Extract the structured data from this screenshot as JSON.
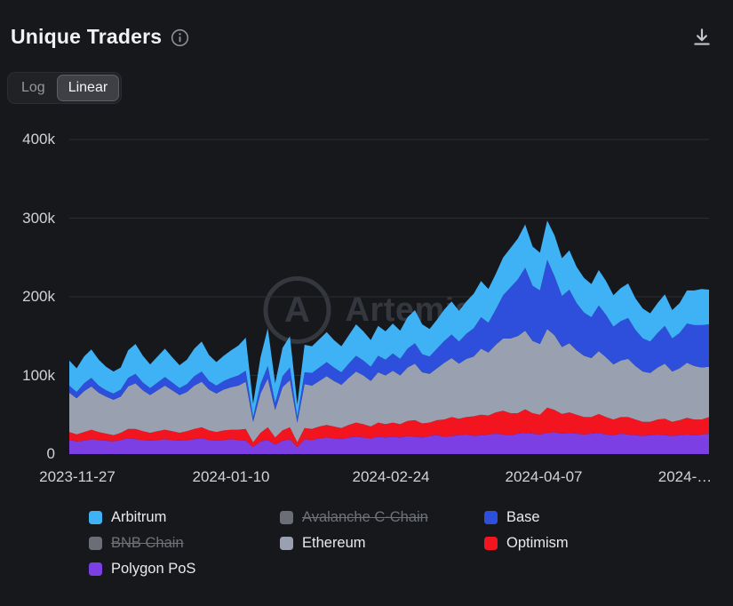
{
  "header": {
    "title": "Unique Traders"
  },
  "scale_toggle": {
    "options": [
      {
        "label": "Log",
        "active": false
      },
      {
        "label": "Linear",
        "active": true
      }
    ]
  },
  "watermark": {
    "logo_letter": "A",
    "text": "Artemis"
  },
  "chart_data": {
    "type": "area",
    "stacked": true,
    "title": "Unique Traders",
    "start_date": "2023-11-27",
    "interval_days": 2,
    "values_unit": "thousands of unique traders",
    "ylim": [
      0,
      400
    ],
    "grid": "horizontal",
    "legend_position": "bottom",
    "y_ticks": [
      {
        "label": "0",
        "value": 0
      },
      {
        "label": "100k",
        "value": 100
      },
      {
        "label": "200k",
        "value": 200
      },
      {
        "label": "300k",
        "value": 300
      },
      {
        "label": "400k",
        "value": 400
      }
    ],
    "x_ticks": [
      {
        "label": "2023-11-27",
        "f": 0.012
      },
      {
        "label": "2024-01-10",
        "f": 0.253
      },
      {
        "label": "2024-02-24",
        "f": 0.503
      },
      {
        "label": "2024-04-07",
        "f": 0.742
      },
      {
        "label": "2024-…",
        "f": 0.962
      }
    ],
    "series": [
      {
        "name": "Polygon PoS",
        "color": "#7b3fe4",
        "values": [
          18,
          16,
          17,
          19,
          18,
          17,
          16,
          18,
          20,
          19,
          18,
          17,
          18,
          19,
          18,
          17,
          18,
          19,
          20,
          18,
          17,
          18,
          19,
          18,
          17,
          9,
          16,
          18,
          12,
          17,
          19,
          9,
          19,
          18,
          20,
          21,
          20,
          19,
          21,
          22,
          21,
          20,
          22,
          21,
          22,
          21,
          23,
          22,
          21,
          23,
          24,
          22,
          23,
          24,
          25,
          23,
          24,
          25,
          26,
          25,
          24,
          26,
          27,
          26,
          25,
          27,
          28,
          26,
          27,
          26,
          25,
          26,
          27,
          25,
          24,
          26,
          25,
          24,
          23,
          24,
          25,
          24,
          23,
          24,
          25,
          24,
          25,
          26
        ]
      },
      {
        "name": "Optimism",
        "color": "#f2141e",
        "values": [
          10,
          9,
          11,
          12,
          10,
          9,
          8,
          9,
          12,
          13,
          11,
          10,
          11,
          12,
          11,
          10,
          11,
          13,
          14,
          12,
          11,
          12,
          12,
          13,
          15,
          6,
          11,
          16,
          9,
          13,
          15,
          6,
          14,
          14,
          15,
          16,
          15,
          14,
          16,
          18,
          17,
          15,
          18,
          17,
          18,
          17,
          19,
          21,
          18,
          17,
          19,
          22,
          24,
          21,
          22,
          25,
          26,
          24,
          27,
          30,
          28,
          26,
          30,
          26,
          25,
          32,
          28,
          25,
          26,
          24,
          22,
          21,
          24,
          22,
          20,
          21,
          22,
          20,
          18,
          17,
          19,
          21,
          18,
          19,
          21,
          20,
          19,
          21
        ]
      },
      {
        "name": "Ethereum",
        "color": "#99a1b0",
        "values": [
          50,
          46,
          52,
          55,
          50,
          47,
          45,
          46,
          54,
          58,
          52,
          48,
          52,
          56,
          52,
          48,
          50,
          55,
          58,
          52,
          49,
          52,
          54,
          56,
          60,
          26,
          50,
          62,
          35,
          55,
          60,
          25,
          56,
          55,
          58,
          62,
          58,
          55,
          60,
          65,
          62,
          58,
          64,
          62,
          66,
          62,
          68,
          72,
          65,
          62,
          66,
          72,
          75,
          70,
          74,
          76,
          84,
          80,
          86,
          92,
          95,
          98,
          100,
          92,
          90,
          100,
          95,
          85,
          88,
          82,
          78,
          75,
          80,
          76,
          70,
          72,
          74,
          68,
          64,
          62,
          66,
          70,
          64,
          66,
          70,
          68,
          66,
          64
        ]
      },
      {
        "name": "Base",
        "color": "#2d4fdc",
        "values": [
          9,
          8,
          10,
          11,
          9,
          8,
          8,
          9,
          11,
          12,
          10,
          9,
          10,
          11,
          10,
          9,
          10,
          12,
          13,
          11,
          10,
          11,
          12,
          13,
          14,
          6,
          12,
          16,
          9,
          14,
          16,
          7,
          15,
          16,
          17,
          18,
          17,
          16,
          18,
          20,
          19,
          18,
          21,
          20,
          22,
          21,
          24,
          26,
          23,
          22,
          25,
          28,
          30,
          28,
          32,
          36,
          40,
          38,
          45,
          55,
          65,
          72,
          80,
          70,
          68,
          88,
          75,
          65,
          68,
          60,
          55,
          52,
          58,
          54,
          48,
          50,
          52,
          46,
          42,
          40,
          44,
          48,
          42,
          45,
          50,
          52,
          54,
          54
        ]
      },
      {
        "name": "Arbitrum",
        "color": "#3fb1f5",
        "values": [
          32,
          30,
          34,
          36,
          33,
          30,
          28,
          28,
          35,
          38,
          34,
          30,
          33,
          36,
          32,
          29,
          31,
          35,
          38,
          33,
          30,
          32,
          35,
          38,
          42,
          17,
          34,
          48,
          25,
          36,
          40,
          16,
          35,
          34,
          36,
          38,
          35,
          33,
          36,
          40,
          37,
          34,
          38,
          36,
          38,
          36,
          40,
          42,
          38,
          35,
          37,
          40,
          42,
          39,
          41,
          44,
          46,
          43,
          45,
          48,
          50,
          52,
          55,
          50,
          48,
          50,
          52,
          48,
          50,
          46,
          44,
          42,
          45,
          43,
          40,
          42,
          44,
          40,
          38,
          36,
          38,
          40,
          36,
          38,
          42,
          44,
          46,
          44
        ]
      }
    ]
  },
  "legend": {
    "items": [
      {
        "label": "Arbitrum",
        "color": "#3fb1f5",
        "enabled": true
      },
      {
        "label": "Avalanche C-Chain",
        "color": "#6b6e76",
        "enabled": false
      },
      {
        "label": "Base",
        "color": "#2d4fdc",
        "enabled": true
      },
      {
        "label": "BNB Chain",
        "color": "#6b6e76",
        "enabled": false
      },
      {
        "label": "Ethereum",
        "color": "#99a1b0",
        "enabled": true
      },
      {
        "label": "Optimism",
        "color": "#f2141e",
        "enabled": true
      },
      {
        "label": "Polygon PoS",
        "color": "#7b3fe4",
        "enabled": true
      }
    ]
  }
}
